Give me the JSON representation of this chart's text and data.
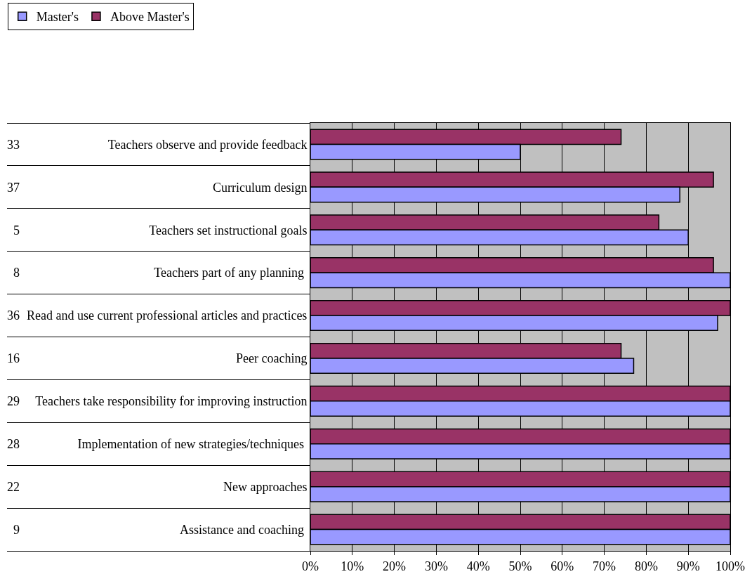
{
  "chart_data": {
    "type": "bar",
    "orientation": "horizontal",
    "categories": [
      "Teachers observe and provide feedback",
      "Curriculum design",
      "Teachers set instructional goals",
      "Teachers part of any planning ",
      "Read and use current professional articles and practices",
      "Peer coaching",
      "Teachers take responsibility for improving instruction",
      "Implementation of new strategies/techniques ",
      "New approaches",
      "Assistance and coaching "
    ],
    "y2_categories": [
      "33",
      "37",
      "5",
      "8",
      "36",
      "16",
      "29",
      "28",
      "22",
      "9"
    ],
    "series": [
      {
        "name": "Master's",
        "color": "#9999ff",
        "values": [
          50,
          88,
          90,
          100,
          97,
          77,
          100,
          100,
          100,
          100
        ]
      },
      {
        "name": "Above Master's",
        "color": "#993366",
        "values": [
          74,
          96,
          83,
          96,
          100,
          74,
          100,
          100,
          100,
          100
        ]
      }
    ],
    "xlim": [
      0,
      100
    ],
    "xticks": [
      {
        "value": 0,
        "label": "0%"
      },
      {
        "value": 10,
        "label": "10%"
      },
      {
        "value": 20,
        "label": "20%"
      },
      {
        "value": 30,
        "label": "30%"
      },
      {
        "value": 40,
        "label": "40%"
      },
      {
        "value": 50,
        "label": "50%"
      },
      {
        "value": 60,
        "label": "60%"
      },
      {
        "value": 70,
        "label": "70%"
      },
      {
        "value": 80,
        "label": "80%"
      },
      {
        "value": 90,
        "label": "90%"
      },
      {
        "value": 100,
        "label": "100%"
      }
    ],
    "grid": "x",
    "legend": "top left"
  }
}
